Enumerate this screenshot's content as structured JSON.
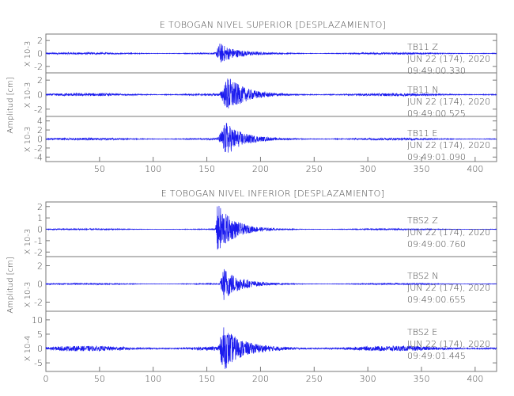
{
  "chart_data": [
    {
      "type": "line",
      "title": "E TOBOGAN NIVEL SUPERIOR [DESPLAZAMIENTO]",
      "ylabel": "Amplitud [cm]",
      "xlim": [
        0,
        420
      ],
      "x_ticks": [
        50,
        100,
        150,
        200,
        250,
        300,
        350,
        400
      ],
      "series": [
        {
          "name": "TB11 Z",
          "scale_label": "X 10-3",
          "ylim": [
            -3,
            3
          ],
          "y_ticks": [
            2,
            0,
            -2
          ],
          "date_line": "JUN 22 (174), 2020",
          "time_line": "09:49:00.330",
          "onset_s": 158,
          "peak_s": 162,
          "peak_amplitude": 1.5,
          "noise_amplitude": 0.15
        },
        {
          "name": "TB11 N",
          "scale_label": "X 10-3",
          "ylim": [
            -3,
            3
          ],
          "y_ticks": [
            2,
            0,
            -2
          ],
          "date_line": "JUN 22 (174), 2020",
          "time_line": "09:49:00.525",
          "onset_s": 162,
          "peak_s": 170,
          "peak_amplitude": 2.4,
          "noise_amplitude": 0.2
        },
        {
          "name": "TB11 E",
          "scale_label": "X 10-3",
          "ylim": [
            -5,
            5
          ],
          "y_ticks": [
            4,
            2,
            0,
            -2,
            -4
          ],
          "date_line": "JUN 22 (174), 2020",
          "time_line": "09:49:01.090",
          "onset_s": 160,
          "peak_s": 168,
          "peak_amplitude": 3.6,
          "noise_amplitude": 0.25
        }
      ]
    },
    {
      "type": "line",
      "title": "E TOBOGAN NIVEL INFERIOR [DESPLAZAMIENTO]",
      "ylabel": "Amplitud [cm]",
      "xlim": [
        0,
        420
      ],
      "x_ticks": [
        0,
        50,
        100,
        150,
        200,
        250,
        300,
        350,
        400
      ],
      "series": [
        {
          "name": "TBS2 Z",
          "scale_label": "X 10-3",
          "ylim": [
            -2.4,
            2.4
          ],
          "y_ticks": [
            2,
            1,
            0,
            -1,
            -2
          ],
          "date_line": "JUN 22 (174), 2020",
          "time_line": "09:49:00.760",
          "onset_s": 158,
          "peak_s": 160,
          "peak_amplitude": 2.3,
          "noise_amplitude": 0.06
        },
        {
          "name": "TBS2 N",
          "scale_label": "X 10-3",
          "ylim": [
            -3,
            3
          ],
          "y_ticks": [
            2,
            0,
            -2
          ],
          "date_line": "JUN 22 (174), 2020",
          "time_line": "09:49:00.655",
          "onset_s": 162,
          "peak_s": 166,
          "peak_amplitude": 1.8,
          "noise_amplitude": 0.08
        },
        {
          "name": "TBS2 E",
          "scale_label": "X 10-4",
          "ylim": [
            -8,
            13
          ],
          "y_ticks": [
            10,
            5,
            0,
            -5
          ],
          "date_line": "JUN 22 (174), 2020",
          "time_line": "09:49:01.445",
          "onset_s": 160,
          "peak_s": 166,
          "peak_amplitude": 7,
          "noise_amplitude": 0.9
        }
      ]
    }
  ]
}
